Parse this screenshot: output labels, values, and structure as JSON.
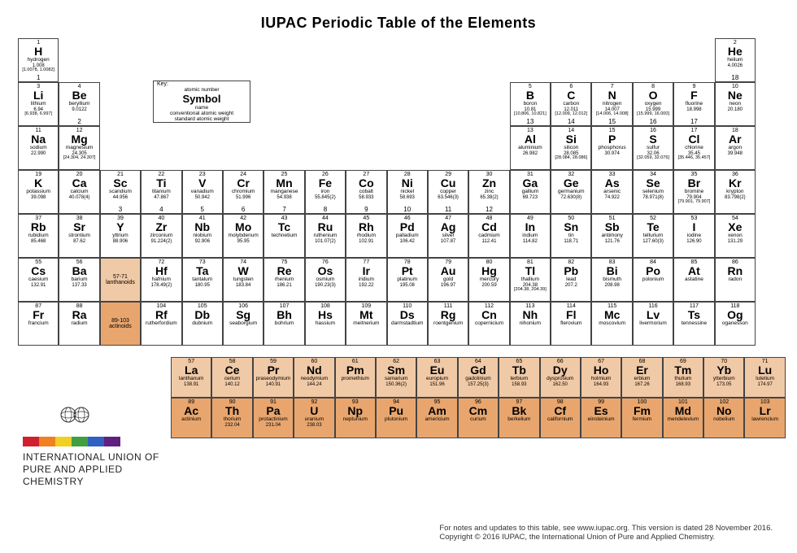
{
  "title": "IUPAC Periodic Table of the Elements",
  "key": {
    "label": "Key:",
    "num": "atomic number",
    "sym": "Symbol",
    "name": "name",
    "wt": "conventional atomic weight",
    "std": "standard atomic weight"
  },
  "colors": {
    "lanthanoid": "#f0c9a6",
    "actinoid": "#e8a66e",
    "border": "#444444",
    "bg": "#ffffff"
  },
  "lan_label": {
    "range": "57-71",
    "name": "lanthanoids"
  },
  "act_label": {
    "range": "89-103",
    "name": "actinoids"
  },
  "footer": {
    "l1": "For notes and updates to this table, see www.iupac.org. This version is dated 28 November 2016.",
    "l2": "Copyright © 2016 IUPAC, the International Union of Pure and Applied Chemistry."
  },
  "org": {
    "l1": "INTERNATIONAL UNION OF",
    "l2": "PURE AND APPLIED CHEMISTRY"
  },
  "bar_colors": [
    "#d02030",
    "#f08020",
    "#f0d020",
    "#40a040",
    "#3060c0",
    "#602080"
  ],
  "groups": [
    "1",
    "2",
    "3",
    "4",
    "5",
    "6",
    "7",
    "8",
    "9",
    "10",
    "11",
    "12",
    "13",
    "14",
    "15",
    "16",
    "17",
    "18"
  ],
  "elements": [
    {
      "n": 1,
      "s": "H",
      "nm": "hydrogen",
      "wt": "1.008",
      "rng": "[1.0078, 1.0082]",
      "g": 1,
      "p": 1
    },
    {
      "n": 2,
      "s": "He",
      "nm": "helium",
      "wt": "4.0026",
      "g": 18,
      "p": 1
    },
    {
      "n": 3,
      "s": "Li",
      "nm": "lithium",
      "wt": "6.94",
      "rng": "[6.938, 6.997]",
      "g": 1,
      "p": 2
    },
    {
      "n": 4,
      "s": "Be",
      "nm": "beryllium",
      "wt": "9.0122",
      "g": 2,
      "p": 2
    },
    {
      "n": 5,
      "s": "B",
      "nm": "boron",
      "wt": "10.81",
      "rng": "[10.806, 10.821]",
      "g": 13,
      "p": 2
    },
    {
      "n": 6,
      "s": "C",
      "nm": "carbon",
      "wt": "12.011",
      "rng": "[12.009, 12.012]",
      "g": 14,
      "p": 2
    },
    {
      "n": 7,
      "s": "N",
      "nm": "nitrogen",
      "wt": "14.007",
      "rng": "[14.006, 14.008]",
      "g": 15,
      "p": 2
    },
    {
      "n": 8,
      "s": "O",
      "nm": "oxygen",
      "wt": "15.999",
      "rng": "[15.999, 16.000]",
      "g": 16,
      "p": 2
    },
    {
      "n": 9,
      "s": "F",
      "nm": "fluorine",
      "wt": "18.998",
      "g": 17,
      "p": 2
    },
    {
      "n": 10,
      "s": "Ne",
      "nm": "neon",
      "wt": "20.180",
      "g": 18,
      "p": 2
    },
    {
      "n": 11,
      "s": "Na",
      "nm": "sodium",
      "wt": "22.990",
      "g": 1,
      "p": 3
    },
    {
      "n": 12,
      "s": "Mg",
      "nm": "magnesium",
      "wt": "24.305",
      "rng": "[24.304, 24.307]",
      "g": 2,
      "p": 3
    },
    {
      "n": 13,
      "s": "Al",
      "nm": "aluminium",
      "wt": "26.982",
      "g": 13,
      "p": 3
    },
    {
      "n": 14,
      "s": "Si",
      "nm": "silicon",
      "wt": "28.085",
      "rng": "[28.084, 28.086]",
      "g": 14,
      "p": 3
    },
    {
      "n": 15,
      "s": "P",
      "nm": "phosphorus",
      "wt": "30.974",
      "g": 15,
      "p": 3
    },
    {
      "n": 16,
      "s": "S",
      "nm": "sulfur",
      "wt": "32.06",
      "rng": "[32.059, 32.076]",
      "g": 16,
      "p": 3
    },
    {
      "n": 17,
      "s": "Cl",
      "nm": "chlorine",
      "wt": "35.45",
      "rng": "[35.446, 35.457]",
      "g": 17,
      "p": 3
    },
    {
      "n": 18,
      "s": "Ar",
      "nm": "argon",
      "wt": "39.948",
      "g": 18,
      "p": 3
    },
    {
      "n": 19,
      "s": "K",
      "nm": "potassium",
      "wt": "39.098",
      "g": 1,
      "p": 4
    },
    {
      "n": 20,
      "s": "Ca",
      "nm": "calcium",
      "wt": "40.078(4)",
      "g": 2,
      "p": 4
    },
    {
      "n": 21,
      "s": "Sc",
      "nm": "scandium",
      "wt": "44.956",
      "g": 3,
      "p": 4
    },
    {
      "n": 22,
      "s": "Ti",
      "nm": "titanium",
      "wt": "47.867",
      "g": 4,
      "p": 4
    },
    {
      "n": 23,
      "s": "V",
      "nm": "vanadium",
      "wt": "50.942",
      "g": 5,
      "p": 4
    },
    {
      "n": 24,
      "s": "Cr",
      "nm": "chromium",
      "wt": "51.996",
      "g": 6,
      "p": 4
    },
    {
      "n": 25,
      "s": "Mn",
      "nm": "manganese",
      "wt": "54.938",
      "g": 7,
      "p": 4
    },
    {
      "n": 26,
      "s": "Fe",
      "nm": "iron",
      "wt": "55.845(2)",
      "g": 8,
      "p": 4
    },
    {
      "n": 27,
      "s": "Co",
      "nm": "cobalt",
      "wt": "58.933",
      "g": 9,
      "p": 4
    },
    {
      "n": 28,
      "s": "Ni",
      "nm": "nickel",
      "wt": "58.693",
      "g": 10,
      "p": 4
    },
    {
      "n": 29,
      "s": "Cu",
      "nm": "copper",
      "wt": "63.546(3)",
      "g": 11,
      "p": 4
    },
    {
      "n": 30,
      "s": "Zn",
      "nm": "zinc",
      "wt": "65.38(2)",
      "g": 12,
      "p": 4
    },
    {
      "n": 31,
      "s": "Ga",
      "nm": "gallium",
      "wt": "69.723",
      "g": 13,
      "p": 4
    },
    {
      "n": 32,
      "s": "Ge",
      "nm": "germanium",
      "wt": "72.630(8)",
      "g": 14,
      "p": 4
    },
    {
      "n": 33,
      "s": "As",
      "nm": "arsenic",
      "wt": "74.922",
      "g": 15,
      "p": 4
    },
    {
      "n": 34,
      "s": "Se",
      "nm": "selenium",
      "wt": "78.971(8)",
      "g": 16,
      "p": 4
    },
    {
      "n": 35,
      "s": "Br",
      "nm": "bromine",
      "wt": "79.904",
      "rng": "[79.901, 79.907]",
      "g": 17,
      "p": 4
    },
    {
      "n": 36,
      "s": "Kr",
      "nm": "krypton",
      "wt": "83.798(2)",
      "g": 18,
      "p": 4
    },
    {
      "n": 37,
      "s": "Rb",
      "nm": "rubidium",
      "wt": "85.468",
      "g": 1,
      "p": 5
    },
    {
      "n": 38,
      "s": "Sr",
      "nm": "strontium",
      "wt": "87.62",
      "g": 2,
      "p": 5
    },
    {
      "n": 39,
      "s": "Y",
      "nm": "yttrium",
      "wt": "88.906",
      "g": 3,
      "p": 5
    },
    {
      "n": 40,
      "s": "Zr",
      "nm": "zirconium",
      "wt": "91.224(2)",
      "g": 4,
      "p": 5
    },
    {
      "n": 41,
      "s": "Nb",
      "nm": "niobium",
      "wt": "92.906",
      "g": 5,
      "p": 5
    },
    {
      "n": 42,
      "s": "Mo",
      "nm": "molybdenum",
      "wt": "95.95",
      "g": 6,
      "p": 5
    },
    {
      "n": 43,
      "s": "Tc",
      "nm": "technetium",
      "wt": "",
      "g": 7,
      "p": 5
    },
    {
      "n": 44,
      "s": "Ru",
      "nm": "ruthenium",
      "wt": "101.07(2)",
      "g": 8,
      "p": 5
    },
    {
      "n": 45,
      "s": "Rh",
      "nm": "rhodium",
      "wt": "102.91",
      "g": 9,
      "p": 5
    },
    {
      "n": 46,
      "s": "Pd",
      "nm": "palladium",
      "wt": "106.42",
      "g": 10,
      "p": 5
    },
    {
      "n": 47,
      "s": "Ag",
      "nm": "silver",
      "wt": "107.87",
      "g": 11,
      "p": 5
    },
    {
      "n": 48,
      "s": "Cd",
      "nm": "cadmium",
      "wt": "112.41",
      "g": 12,
      "p": 5
    },
    {
      "n": 49,
      "s": "In",
      "nm": "indium",
      "wt": "114.82",
      "g": 13,
      "p": 5
    },
    {
      "n": 50,
      "s": "Sn",
      "nm": "tin",
      "wt": "118.71",
      "g": 14,
      "p": 5
    },
    {
      "n": 51,
      "s": "Sb",
      "nm": "antimony",
      "wt": "121.76",
      "g": 15,
      "p": 5
    },
    {
      "n": 52,
      "s": "Te",
      "nm": "tellurium",
      "wt": "127.60(3)",
      "g": 16,
      "p": 5
    },
    {
      "n": 53,
      "s": "I",
      "nm": "iodine",
      "wt": "126.90",
      "g": 17,
      "p": 5
    },
    {
      "n": 54,
      "s": "Xe",
      "nm": "xenon",
      "wt": "131.29",
      "g": 18,
      "p": 5
    },
    {
      "n": 55,
      "s": "Cs",
      "nm": "caesium",
      "wt": "132.91",
      "g": 1,
      "p": 6
    },
    {
      "n": 56,
      "s": "Ba",
      "nm": "barium",
      "wt": "137.33",
      "g": 2,
      "p": 6
    },
    {
      "n": 72,
      "s": "Hf",
      "nm": "hafnium",
      "wt": "178.49(2)",
      "g": 4,
      "p": 6
    },
    {
      "n": 73,
      "s": "Ta",
      "nm": "tantalum",
      "wt": "180.95",
      "g": 5,
      "p": 6
    },
    {
      "n": 74,
      "s": "W",
      "nm": "tungsten",
      "wt": "183.84",
      "g": 6,
      "p": 6
    },
    {
      "n": 75,
      "s": "Re",
      "nm": "rhenium",
      "wt": "186.21",
      "g": 7,
      "p": 6
    },
    {
      "n": 76,
      "s": "Os",
      "nm": "osmium",
      "wt": "190.23(3)",
      "g": 8,
      "p": 6
    },
    {
      "n": 77,
      "s": "Ir",
      "nm": "iridium",
      "wt": "192.22",
      "g": 9,
      "p": 6
    },
    {
      "n": 78,
      "s": "Pt",
      "nm": "platinum",
      "wt": "195.08",
      "g": 10,
      "p": 6
    },
    {
      "n": 79,
      "s": "Au",
      "nm": "gold",
      "wt": "196.97",
      "g": 11,
      "p": 6
    },
    {
      "n": 80,
      "s": "Hg",
      "nm": "mercury",
      "wt": "200.59",
      "g": 12,
      "p": 6
    },
    {
      "n": 81,
      "s": "Tl",
      "nm": "thallium",
      "wt": "204.38",
      "rng": "[204.38, 204.39]",
      "g": 13,
      "p": 6
    },
    {
      "n": 82,
      "s": "Pb",
      "nm": "lead",
      "wt": "207.2",
      "g": 14,
      "p": 6
    },
    {
      "n": 83,
      "s": "Bi",
      "nm": "bismuth",
      "wt": "208.98",
      "g": 15,
      "p": 6
    },
    {
      "n": 84,
      "s": "Po",
      "nm": "polonium",
      "wt": "",
      "g": 16,
      "p": 6
    },
    {
      "n": 85,
      "s": "At",
      "nm": "astatine",
      "wt": "",
      "g": 17,
      "p": 6
    },
    {
      "n": 86,
      "s": "Rn",
      "nm": "radon",
      "wt": "",
      "g": 18,
      "p": 6
    },
    {
      "n": 87,
      "s": "Fr",
      "nm": "francium",
      "wt": "",
      "g": 1,
      "p": 7
    },
    {
      "n": 88,
      "s": "Ra",
      "nm": "radium",
      "wt": "",
      "g": 2,
      "p": 7
    },
    {
      "n": 104,
      "s": "Rf",
      "nm": "rutherfordium",
      "wt": "",
      "g": 4,
      "p": 7
    },
    {
      "n": 105,
      "s": "Db",
      "nm": "dubnium",
      "wt": "",
      "g": 5,
      "p": 7
    },
    {
      "n": 106,
      "s": "Sg",
      "nm": "seaborgium",
      "wt": "",
      "g": 6,
      "p": 7
    },
    {
      "n": 107,
      "s": "Bh",
      "nm": "bohrium",
      "wt": "",
      "g": 7,
      "p": 7
    },
    {
      "n": 108,
      "s": "Hs",
      "nm": "hassium",
      "wt": "",
      "g": 8,
      "p": 7
    },
    {
      "n": 109,
      "s": "Mt",
      "nm": "meitnerium",
      "wt": "",
      "g": 9,
      "p": 7
    },
    {
      "n": 110,
      "s": "Ds",
      "nm": "darmstadtium",
      "wt": "",
      "g": 10,
      "p": 7
    },
    {
      "n": 111,
      "s": "Rg",
      "nm": "roentgenium",
      "wt": "",
      "g": 11,
      "p": 7
    },
    {
      "n": 112,
      "s": "Cn",
      "nm": "copernicium",
      "wt": "",
      "g": 12,
      "p": 7
    },
    {
      "n": 113,
      "s": "Nh",
      "nm": "nihonium",
      "wt": "",
      "g": 13,
      "p": 7
    },
    {
      "n": 114,
      "s": "Fl",
      "nm": "flerovium",
      "wt": "",
      "g": 14,
      "p": 7
    },
    {
      "n": 115,
      "s": "Mc",
      "nm": "moscovium",
      "wt": "",
      "g": 15,
      "p": 7
    },
    {
      "n": 116,
      "s": "Lv",
      "nm": "livermorium",
      "wt": "",
      "g": 16,
      "p": 7
    },
    {
      "n": 117,
      "s": "Ts",
      "nm": "tennessine",
      "wt": "",
      "g": 17,
      "p": 7
    },
    {
      "n": 118,
      "s": "Og",
      "nm": "oganesson",
      "wt": "",
      "g": 18,
      "p": 7
    }
  ],
  "lanthanoids": [
    {
      "n": 57,
      "s": "La",
      "nm": "lanthanum",
      "wt": "138.91"
    },
    {
      "n": 58,
      "s": "Ce",
      "nm": "cerium",
      "wt": "140.12"
    },
    {
      "n": 59,
      "s": "Pr",
      "nm": "praseodymium",
      "wt": "140.91"
    },
    {
      "n": 60,
      "s": "Nd",
      "nm": "neodymium",
      "wt": "144.24"
    },
    {
      "n": 61,
      "s": "Pm",
      "nm": "promethium",
      "wt": ""
    },
    {
      "n": 62,
      "s": "Sm",
      "nm": "samarium",
      "wt": "150.36(2)"
    },
    {
      "n": 63,
      "s": "Eu",
      "nm": "europium",
      "wt": "151.96"
    },
    {
      "n": 64,
      "s": "Gd",
      "nm": "gadolinium",
      "wt": "157.25(3)"
    },
    {
      "n": 65,
      "s": "Tb",
      "nm": "terbium",
      "wt": "158.93"
    },
    {
      "n": 66,
      "s": "Dy",
      "nm": "dysprosium",
      "wt": "162.50"
    },
    {
      "n": 67,
      "s": "Ho",
      "nm": "holmium",
      "wt": "164.93"
    },
    {
      "n": 68,
      "s": "Er",
      "nm": "erbium",
      "wt": "167.26"
    },
    {
      "n": 69,
      "s": "Tm",
      "nm": "thulium",
      "wt": "168.93"
    },
    {
      "n": 70,
      "s": "Yb",
      "nm": "ytterbium",
      "wt": "173.05"
    },
    {
      "n": 71,
      "s": "Lu",
      "nm": "lutetium",
      "wt": "174.97"
    }
  ],
  "actinoids": [
    {
      "n": 89,
      "s": "Ac",
      "nm": "actinium",
      "wt": ""
    },
    {
      "n": 90,
      "s": "Th",
      "nm": "thorium",
      "wt": "232.04"
    },
    {
      "n": 91,
      "s": "Pa",
      "nm": "protactinium",
      "wt": "231.04"
    },
    {
      "n": 92,
      "s": "U",
      "nm": "uranium",
      "wt": "238.03"
    },
    {
      "n": 93,
      "s": "Np",
      "nm": "neptunium",
      "wt": ""
    },
    {
      "n": 94,
      "s": "Pu",
      "nm": "plutonium",
      "wt": ""
    },
    {
      "n": 95,
      "s": "Am",
      "nm": "americium",
      "wt": ""
    },
    {
      "n": 96,
      "s": "Cm",
      "nm": "curium",
      "wt": ""
    },
    {
      "n": 97,
      "s": "Bk",
      "nm": "berkelium",
      "wt": ""
    },
    {
      "n": 98,
      "s": "Cf",
      "nm": "californium",
      "wt": ""
    },
    {
      "n": 99,
      "s": "Es",
      "nm": "einsteinium",
      "wt": ""
    },
    {
      "n": 100,
      "s": "Fm",
      "nm": "fermium",
      "wt": ""
    },
    {
      "n": 101,
      "s": "Md",
      "nm": "mendelevium",
      "wt": ""
    },
    {
      "n": 102,
      "s": "No",
      "nm": "nobelium",
      "wt": ""
    },
    {
      "n": 103,
      "s": "Lr",
      "nm": "lawrencium",
      "wt": ""
    }
  ]
}
